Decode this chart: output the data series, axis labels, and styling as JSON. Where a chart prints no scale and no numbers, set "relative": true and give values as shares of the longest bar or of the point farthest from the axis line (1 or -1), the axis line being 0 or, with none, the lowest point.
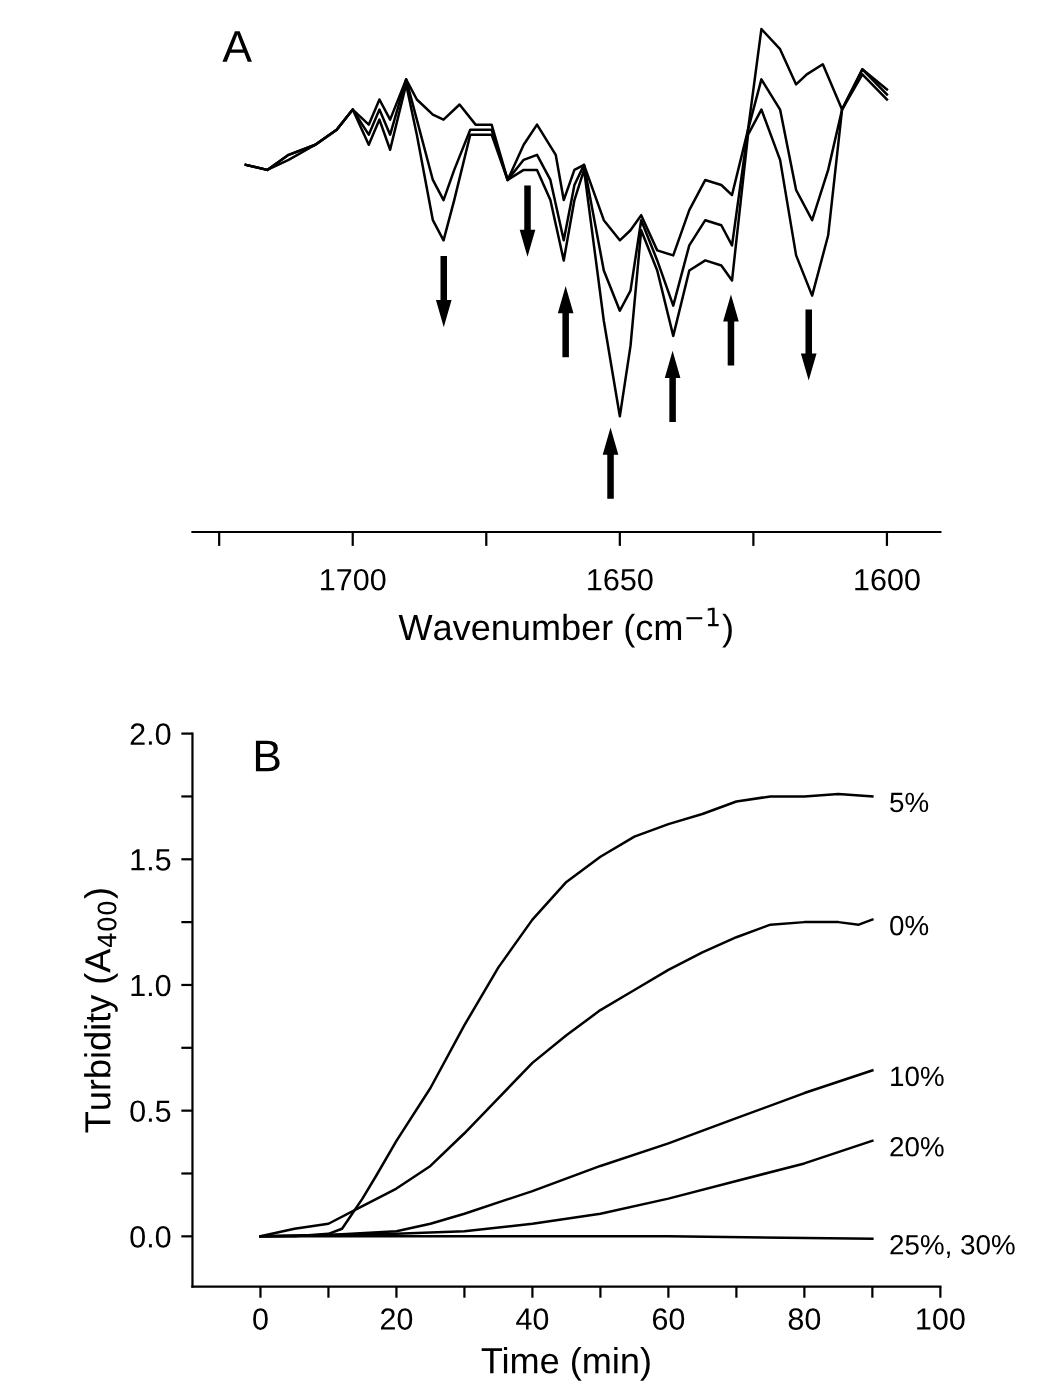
{
  "chart_data": [
    {
      "type": "line",
      "title": "A",
      "xlabel": "Wavenumber (cm$^{−1}$)",
      "relative": true,
      "xlim": [
        1730,
        1590
      ],
      "xticks": [
        {
          "value": 1725,
          "label": null
        },
        1700,
        {
          "value": 1675,
          "label": null
        },
        1650,
        {
          "value": 1625,
          "label": null
        },
        1600
      ],
      "grid": false,
      "legend": false,
      "marker": "none",
      "line_style": "solid",
      "series": [
        {
          "color": "#000000",
          "x": [
            1720,
            1716,
            1712,
            1707,
            1703,
            1700,
            1697,
            1695,
            1693,
            1690,
            1688,
            1685,
            1683,
            1680,
            1677,
            1674,
            1671,
            1668,
            1665.5,
            1662,
            1660.5,
            1658.5,
            1656.7,
            1653,
            1650,
            1648,
            1646,
            1643,
            1640,
            1637,
            1634,
            1631,
            1629,
            1626,
            1623.5,
            1620,
            1617,
            1615,
            1612,
            1608.4,
            1604.6,
            1600
          ],
          "values": [
            0.73,
            0.72,
            0.75,
            0.77,
            0.8,
            0.84,
            0.81,
            0.86,
            0.82,
            0.9,
            0.86,
            0.83,
            0.82,
            0.85,
            0.81,
            0.81,
            0.7,
            0.77,
            0.81,
            0.75,
            0.66,
            0.72,
            0.73,
            0.62,
            0.58,
            0.6,
            0.63,
            0.56,
            0.55,
            0.64,
            0.7,
            0.69,
            0.67,
            0.8,
            1.0,
            0.96,
            0.89,
            0.91,
            0.93,
            0.84,
            0.92,
            0.88
          ]
        },
        {
          "color": "#000000",
          "x": [
            1720,
            1716,
            1712,
            1707,
            1703,
            1700,
            1697,
            1695,
            1693,
            1690,
            1688,
            1685,
            1683,
            1681,
            1678,
            1674,
            1671,
            1668,
            1665.5,
            1663,
            1660.5,
            1658.5,
            1656.7,
            1653,
            1650,
            1648,
            1646,
            1643,
            1640,
            1637,
            1634,
            1631,
            1629,
            1626,
            1623.5,
            1620,
            1617,
            1614,
            1611,
            1608.4,
            1604.6,
            1600
          ],
          "values": [
            0.73,
            0.72,
            0.75,
            0.77,
            0.8,
            0.84,
            0.79,
            0.84,
            0.79,
            0.9,
            0.82,
            0.7,
            0.66,
            0.72,
            0.8,
            0.8,
            0.7,
            0.74,
            0.75,
            0.7,
            0.58,
            0.69,
            0.73,
            0.52,
            0.44,
            0.48,
            0.62,
            0.54,
            0.45,
            0.57,
            0.62,
            0.61,
            0.57,
            0.8,
            0.9,
            0.84,
            0.68,
            0.62,
            0.72,
            0.84,
            0.92,
            0.87
          ]
        },
        {
          "color": "#000000",
          "x": [
            1720,
            1716,
            1712,
            1707,
            1703,
            1700,
            1697,
            1695,
            1693,
            1690,
            1688,
            1685,
            1683,
            1681,
            1678,
            1674,
            1671,
            1668,
            1665.5,
            1663,
            1660.5,
            1658.5,
            1656.7,
            1653,
            1650,
            1648,
            1646,
            1643,
            1640,
            1637,
            1634,
            1631,
            1629,
            1626,
            1623.5,
            1620,
            1617,
            1614,
            1611,
            1608.4,
            1604.6,
            1600
          ],
          "values": [
            0.73,
            0.72,
            0.74,
            0.77,
            0.8,
            0.84,
            0.77,
            0.82,
            0.76,
            0.89,
            0.79,
            0.62,
            0.58,
            0.66,
            0.79,
            0.79,
            0.7,
            0.72,
            0.72,
            0.66,
            0.54,
            0.66,
            0.72,
            0.42,
            0.23,
            0.37,
            0.6,
            0.52,
            0.39,
            0.52,
            0.54,
            0.53,
            0.5,
            0.79,
            0.84,
            0.74,
            0.55,
            0.47,
            0.59,
            0.84,
            0.91,
            0.86
          ]
        }
      ]
    },
    {
      "type": "line",
      "title": "B",
      "xlabel": "Time (min)",
      "ylabel": "Turbidity (A$_{400}$)",
      "xlim": [
        -10,
        100
      ],
      "xticks": [
        0,
        {
          "value": 10,
          "label": null
        },
        20,
        {
          "value": 30,
          "label": null
        },
        40,
        {
          "value": 50,
          "label": null
        },
        60,
        {
          "value": 70,
          "label": null
        },
        80,
        {
          "value": 90,
          "label": null
        },
        100
      ],
      "ylim": [
        -0.2,
        2.0
      ],
      "yticks": [
        {
          "value": 0,
          "label": "0.0"
        },
        {
          "value": 0.25,
          "label": null
        },
        0.5,
        {
          "value": 0.75,
          "label": null
        },
        {
          "value": 1,
          "label": "1.0"
        },
        {
          "value": 1.25,
          "label": null
        },
        1.5,
        {
          "value": 1.75,
          "label": null
        },
        {
          "value": 2,
          "label": "2.0"
        }
      ],
      "grid": false,
      "legend": false,
      "marker": "none",
      "line_style": "solid",
      "series": [
        {
          "name": "5%",
          "color": "#000000",
          "x": [
            0,
            5,
            10,
            12,
            13,
            15,
            17,
            20,
            25,
            30,
            35,
            40,
            45,
            50,
            55,
            60,
            65,
            70,
            75,
            80,
            85,
            90
          ],
          "values": [
            0,
            0.0,
            0.01,
            0.03,
            0.07,
            0.15,
            0.24,
            0.38,
            0.59,
            0.84,
            1.07,
            1.26,
            1.41,
            1.51,
            1.59,
            1.64,
            1.68,
            1.73,
            1.75,
            1.75,
            1.76,
            1.75
          ]
        },
        {
          "name": "0%",
          "color": "#000000",
          "x": [
            0,
            5,
            10,
            15,
            20,
            25,
            30,
            35,
            40,
            45,
            50,
            55,
            60,
            65,
            70,
            75,
            80,
            85,
            88,
            90
          ],
          "values": [
            0,
            0.03,
            0.05,
            0.12,
            0.19,
            0.28,
            0.41,
            0.55,
            0.69,
            0.8,
            0.9,
            0.98,
            1.06,
            1.13,
            1.19,
            1.24,
            1.25,
            1.25,
            1.24,
            1.26
          ]
        },
        {
          "name": "10%",
          "color": "#000000",
          "x": [
            0,
            10,
            20,
            25,
            30,
            40,
            50,
            60,
            70,
            80,
            90
          ],
          "values": [
            0,
            0.005,
            0.02,
            0.05,
            0.09,
            0.18,
            0.28,
            0.37,
            0.47,
            0.57,
            0.66
          ]
        },
        {
          "name": "20%",
          "color": "#000000",
          "x": [
            0,
            20,
            30,
            40,
            50,
            60,
            70,
            80,
            90
          ],
          "values": [
            0,
            0.01,
            0.02,
            0.05,
            0.09,
            0.15,
            0.22,
            0.29,
            0.38
          ]
        },
        {
          "name": "25%, 30%",
          "color": "#000000",
          "x": [
            0,
            30,
            60,
            90
          ],
          "values": [
            0,
            0,
            0,
            -0.01
          ]
        }
      ]
    }
  ]
}
